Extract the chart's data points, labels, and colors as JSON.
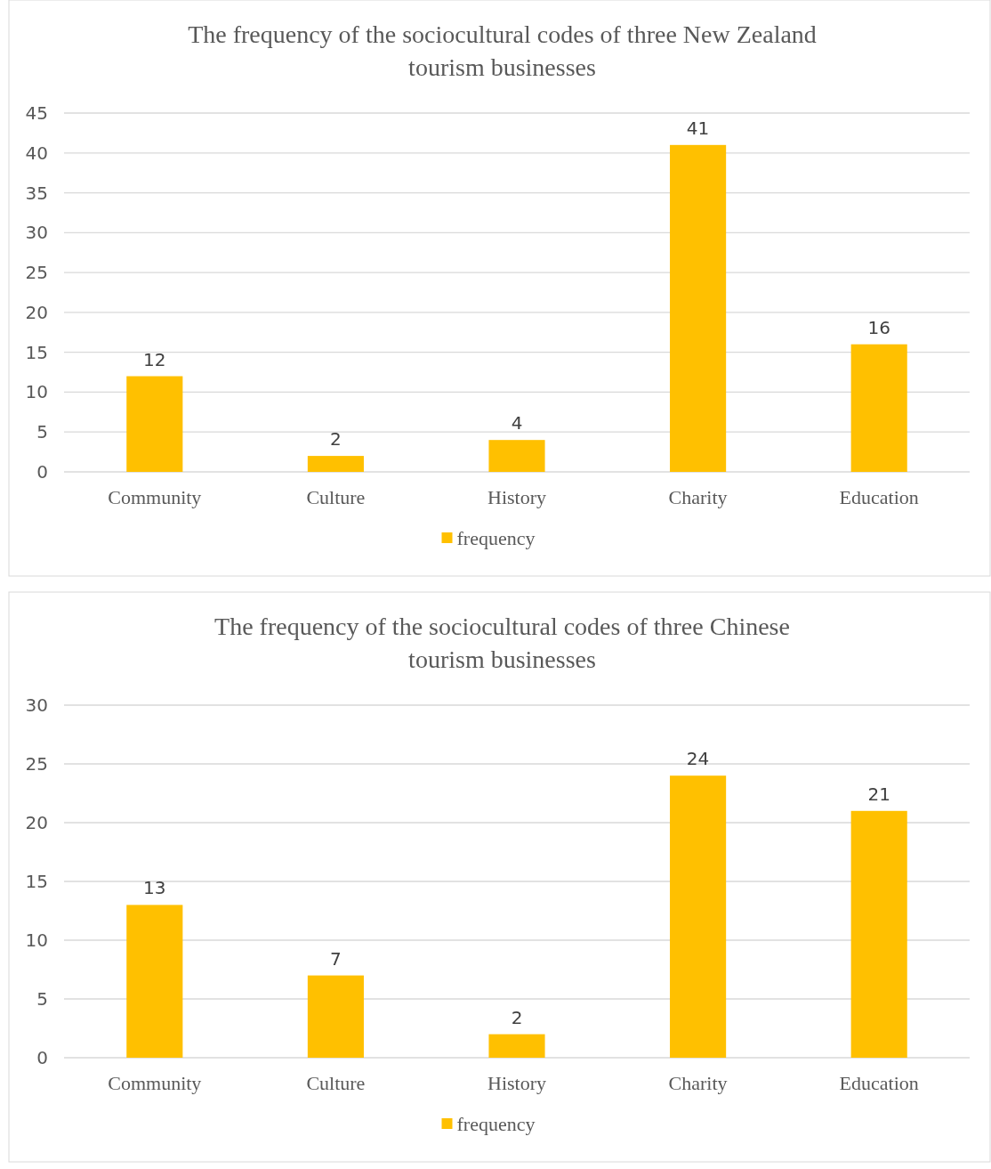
{
  "chart_data": [
    {
      "type": "bar",
      "title": "The frequency of the sociocultural codes of three New Zealand tourism businesses",
      "categories": [
        "Community",
        "Culture",
        "History",
        "Charity",
        "Education"
      ],
      "series": [
        {
          "name": "frequency",
          "color": "#ffc000",
          "values": [
            12,
            2,
            4,
            41,
            16
          ]
        }
      ],
      "ylim": [
        0,
        45
      ],
      "yticks": [
        0,
        5,
        10,
        15,
        20,
        25,
        30,
        35,
        40,
        45
      ],
      "grid": "y",
      "legend": "bottom",
      "data_labels": true
    },
    {
      "type": "bar",
      "title": "The frequency of the sociocultural codes of three Chinese tourism businesses",
      "categories": [
        "Community",
        "Culture",
        "History",
        "Charity",
        "Education"
      ],
      "series": [
        {
          "name": "frequency",
          "color": "#ffc000",
          "values": [
            13,
            7,
            2,
            24,
            21
          ]
        }
      ],
      "ylim": [
        0,
        30
      ],
      "yticks": [
        0,
        5,
        10,
        15,
        20,
        25,
        30
      ],
      "grid": "y",
      "legend": "bottom",
      "data_labels": true
    }
  ]
}
